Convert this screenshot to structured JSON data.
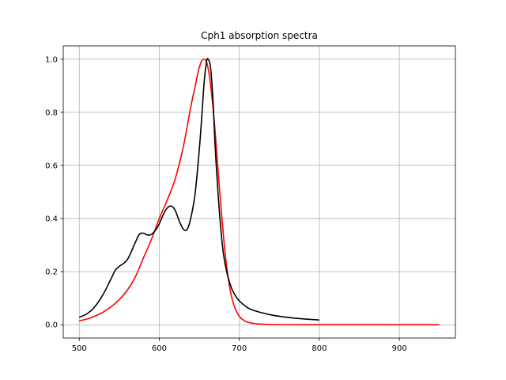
{
  "chart_data": {
    "type": "line",
    "title": "Cph1 absorption spectra",
    "xlabel": "",
    "ylabel": "",
    "xlim": [
      480,
      970
    ],
    "ylim": [
      -0.05,
      1.05
    ],
    "xticks": [
      500,
      600,
      700,
      800,
      900
    ],
    "yticks": [
      0.0,
      0.2,
      0.4,
      0.6,
      0.8,
      1.0
    ],
    "xtick_labels": [
      "500",
      "600",
      "700",
      "800",
      "900"
    ],
    "ytick_labels": [
      "0.0",
      "0.2",
      "0.4",
      "0.6",
      "0.8",
      "1.0"
    ],
    "grid": true,
    "legend": false,
    "series": [
      {
        "color": "#ff0000",
        "x": [
          500,
          510,
          520,
          530,
          540,
          550,
          560,
          570,
          580,
          590,
          600,
          610,
          620,
          630,
          640,
          645,
          650,
          655,
          660,
          665,
          670,
          675,
          680,
          685,
          690,
          695,
          700,
          705,
          710,
          720,
          730,
          740,
          760,
          800,
          850,
          900,
          950
        ],
        "y": [
          0.015,
          0.022,
          0.033,
          0.048,
          0.068,
          0.095,
          0.13,
          0.18,
          0.25,
          0.32,
          0.4,
          0.47,
          0.55,
          0.67,
          0.83,
          0.9,
          0.97,
          1.0,
          0.98,
          0.88,
          0.72,
          0.52,
          0.34,
          0.2,
          0.11,
          0.06,
          0.032,
          0.018,
          0.01,
          0.004,
          0.002,
          0.001,
          0.0003,
          0.0,
          0.0,
          0.0,
          0.0
        ]
      },
      {
        "color": "#000000",
        "x": [
          500,
          510,
          520,
          530,
          540,
          545,
          550,
          555,
          560,
          565,
          570,
          575,
          580,
          585,
          590,
          595,
          600,
          605,
          610,
          615,
          620,
          625,
          630,
          635,
          640,
          645,
          650,
          653,
          656,
          659,
          661,
          664,
          667,
          670,
          675,
          680,
          685,
          690,
          695,
          700,
          710,
          720,
          740,
          760,
          780,
          800
        ],
        "y": [
          0.028,
          0.042,
          0.07,
          0.115,
          0.175,
          0.205,
          0.22,
          0.23,
          0.245,
          0.275,
          0.31,
          0.34,
          0.345,
          0.338,
          0.34,
          0.355,
          0.38,
          0.415,
          0.44,
          0.447,
          0.43,
          0.39,
          0.36,
          0.36,
          0.41,
          0.5,
          0.66,
          0.78,
          0.91,
          0.99,
          1.0,
          0.97,
          0.85,
          0.66,
          0.43,
          0.27,
          0.19,
          0.14,
          0.11,
          0.09,
          0.065,
          0.052,
          0.037,
          0.028,
          0.022,
          0.018
        ]
      }
    ]
  }
}
